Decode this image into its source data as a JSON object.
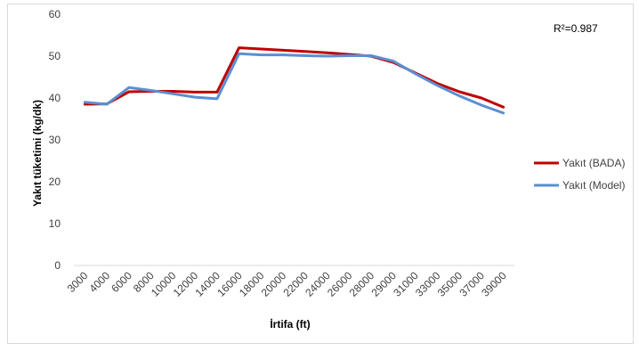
{
  "chart_data": {
    "type": "line",
    "xlabel": "İrtifa (ft)",
    "ylabel": "Yakıt tüketimi (kg/dk)",
    "ylim": [
      0,
      60
    ],
    "yticks": [
      0,
      10,
      20,
      30,
      40,
      50,
      60
    ],
    "grid": false,
    "legend_position": "right",
    "annotation": "R²=0.987",
    "categories": [
      "3000",
      "4000",
      "6000",
      "8000",
      "10000",
      "12000",
      "14000",
      "16000",
      "18000",
      "20000",
      "22000",
      "24000",
      "26000",
      "28000",
      "29000",
      "31000",
      "33000",
      "35000",
      "37000",
      "39000"
    ],
    "series": [
      {
        "name": "Yakıt (BADA)",
        "color": "#c00000",
        "values": [
          38.5,
          38.6,
          41.5,
          41.6,
          41.6,
          41.4,
          41.4,
          52.0,
          51.7,
          51.4,
          51.1,
          50.8,
          50.4,
          50.0,
          48.5,
          46.0,
          43.5,
          41.5,
          40.0,
          37.8
        ]
      },
      {
        "name": "Yakıt (Model)",
        "color": "#5b8fd0",
        "values": [
          39.0,
          38.5,
          42.5,
          41.8,
          41.0,
          40.2,
          39.8,
          50.6,
          50.3,
          50.3,
          50.1,
          50.0,
          50.1,
          50.1,
          48.8,
          45.8,
          43.0,
          40.5,
          38.3,
          36.4
        ]
      }
    ]
  }
}
